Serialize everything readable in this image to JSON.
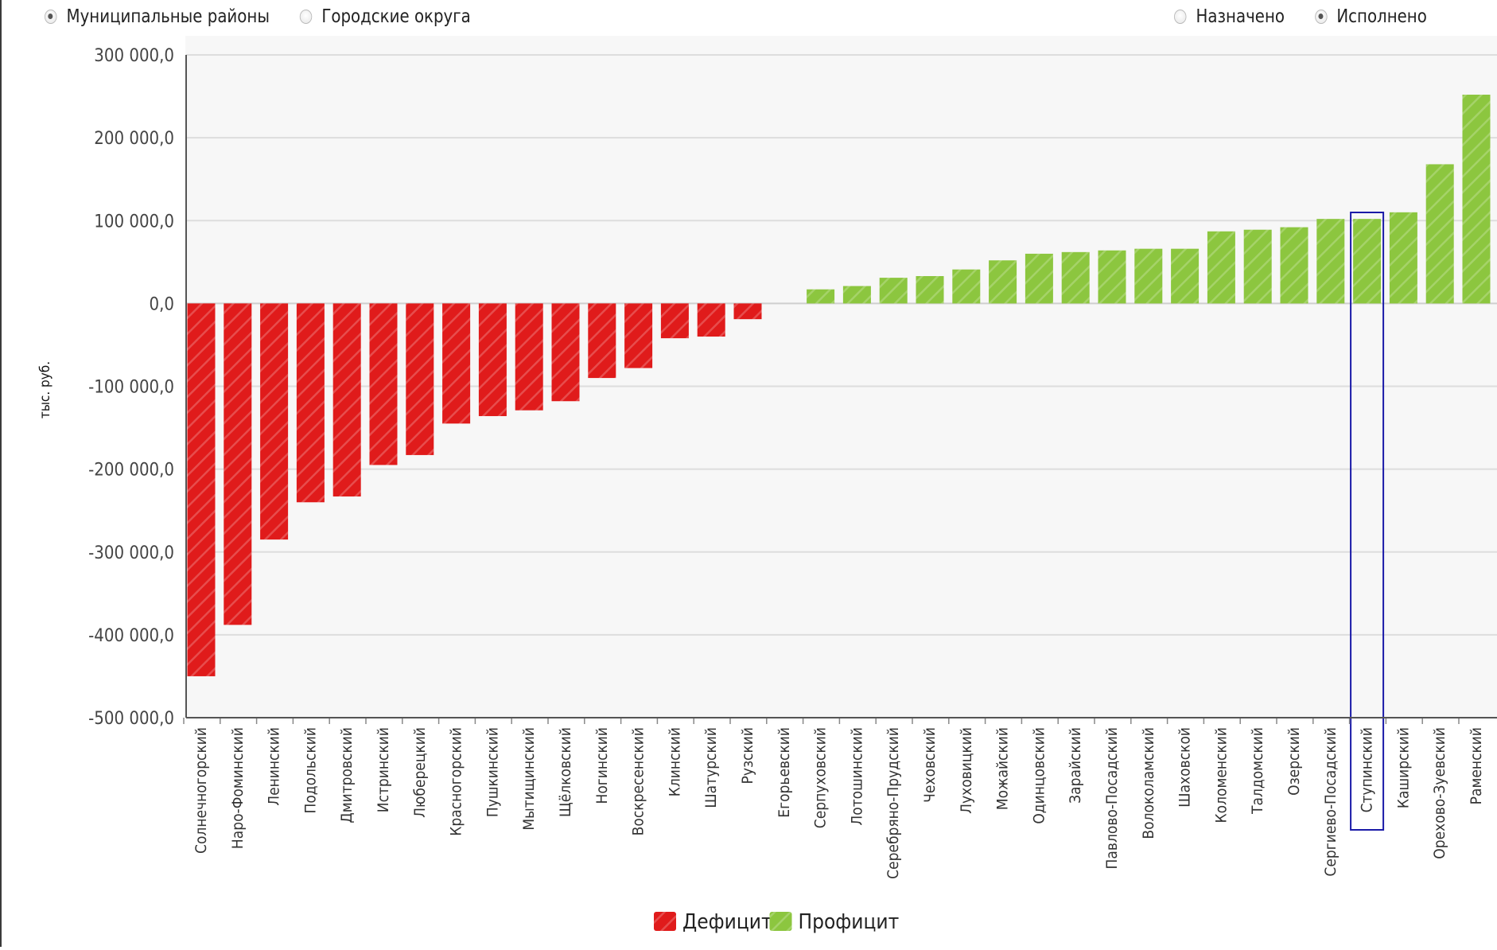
{
  "filters": {
    "left": [
      {
        "label": "Муниципальные районы",
        "checked": true
      },
      {
        "label": "Городские округа",
        "checked": false
      }
    ],
    "right": [
      {
        "label": "Назначено",
        "checked": false
      },
      {
        "label": "Исполнено",
        "checked": true
      }
    ]
  },
  "colors": {
    "deficit": "#e01b1b",
    "surplus": "#8cc63f",
    "highlight": "#1a1aa8",
    "grid": "#dddddd",
    "plot_bg": "#f7f7f7"
  },
  "chart_data": {
    "type": "bar",
    "ylabel": "тыс. руб.",
    "ylim": [
      -500000,
      300000
    ],
    "yticks": [
      300000,
      200000,
      100000,
      0,
      -100000,
      -200000,
      -300000,
      -400000,
      -500000
    ],
    "ytick_labels": [
      "300 000,0",
      "200 000,0",
      "100 000,0",
      "0,0",
      "-100 000,0",
      "-200 000,0",
      "-300 000,0",
      "-400 000,0",
      "-500 000,0"
    ],
    "grid": true,
    "legend": {
      "placement": "bottom-center",
      "items": [
        {
          "label": "Дефицит",
          "key": "deficit"
        },
        {
          "label": "Профицит",
          "key": "surplus"
        }
      ]
    },
    "highlighted_category": "Ступинский",
    "categories": [
      "Солнечногорский",
      "Наро-Фоминский",
      "Ленинский",
      "Подольский",
      "Дмитровский",
      "Истринский",
      "Люберецкий",
      "Красногорский",
      "Пушкинский",
      "Мытищинский",
      "Щёлковский",
      "Ногинский",
      "Воскресенский",
      "Клинский",
      "Шатурский",
      "Рузский",
      "Егорьевский",
      "Серпуховский",
      "Лотошинский",
      "Серебряно-Прудский",
      "Чеховский",
      "Луховицкий",
      "Можайский",
      "Одинцовский",
      "Зарайский",
      "Павлово-Посадский",
      "Волоколамский",
      "Шаховской",
      "Коломенский",
      "Талдомский",
      "Озерский",
      "Сергиево-Посадский",
      "Ступинский",
      "Каширский",
      "Орехово-Зуевский",
      "Раменский"
    ],
    "values": [
      -450000,
      -388000,
      -285000,
      -240000,
      -233000,
      -195000,
      -183000,
      -145000,
      -136000,
      -129000,
      -118000,
      -90000,
      -78000,
      -42000,
      -40000,
      -19000,
      0,
      17000,
      21000,
      31000,
      33000,
      41000,
      52000,
      60000,
      62000,
      64000,
      66000,
      66000,
      87000,
      89000,
      92000,
      102000,
      102000,
      110000,
      168000,
      252000
    ]
  }
}
